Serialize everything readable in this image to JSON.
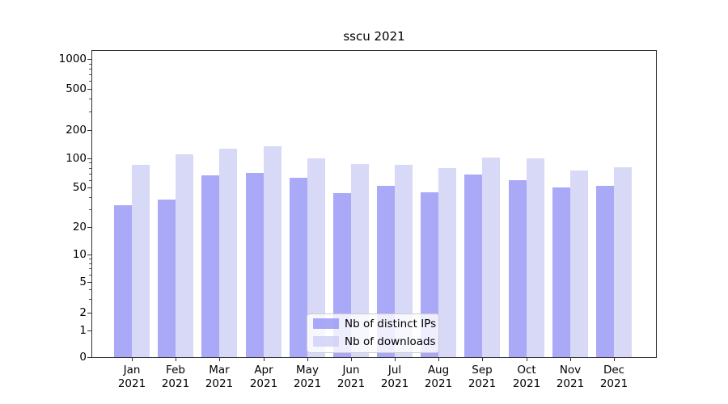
{
  "title": "sscu 2021",
  "colors": {
    "distinct_ips_bar": "rgba(147,147,246,0.8)",
    "downloads_bar": "rgba(206,206,245,0.8)",
    "major_gridline": "#c9c9c9",
    "minor_gridline": "#ececec",
    "axis_spine": "#333333"
  },
  "legend": {
    "entries": [
      "Nb of distinct IPs",
      "Nb of downloads"
    ]
  },
  "chart_data": {
    "type": "bar",
    "title": "sscu 2021",
    "xlabel": "",
    "ylabel": "",
    "yscale": "symlog",
    "ylim": [
      0,
      1250
    ],
    "grid": true,
    "legend_position": "lower center",
    "y_tick_values": [
      0,
      1,
      2,
      5,
      10,
      20,
      50,
      100,
      200,
      500,
      1000
    ],
    "y_tick_labels": [
      "0",
      "1",
      "2",
      "5",
      "10",
      "20",
      "50",
      "100",
      "200",
      "500",
      "1000"
    ],
    "months": [
      "Jan",
      "Feb",
      "Mar",
      "Apr",
      "May",
      "Jun",
      "Jul",
      "Aug",
      "Sep",
      "Oct",
      "Nov",
      "Dec"
    ],
    "year": "2021",
    "categories": [
      "Jan 2021",
      "Feb 2021",
      "Mar 2021",
      "Apr 2021",
      "May 2021",
      "Jun 2021",
      "Jul 2021",
      "Aug 2021",
      "Sep 2021",
      "Oct 2021",
      "Nov 2021",
      "Dec 2021"
    ],
    "series": [
      {
        "name": "Nb of distinct IPs",
        "color": "rgba(147,147,246,0.8)",
        "values": [
          33,
          38,
          67,
          71,
          63,
          44,
          52,
          45,
          68,
          60,
          50,
          52
        ]
      },
      {
        "name": "Nb of downloads",
        "color": "rgba(206,206,245,0.8)",
        "values": [
          86,
          110,
          128,
          135,
          100,
          87,
          85,
          80,
          102,
          100,
          75,
          81
        ]
      }
    ]
  }
}
